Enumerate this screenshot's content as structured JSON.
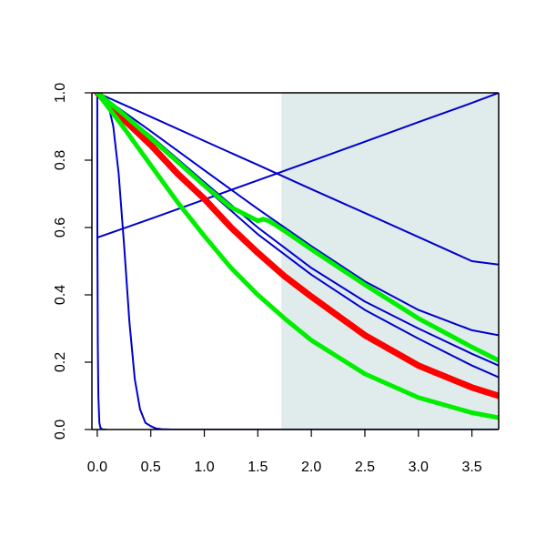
{
  "chart_data": {
    "type": "line",
    "title": "",
    "xlabel": "",
    "ylabel": "",
    "xlim": [
      -0.05,
      3.75
    ],
    "ylim": [
      0.0,
      1.0
    ],
    "grid": false,
    "legend": "none",
    "x_ticks": [
      "0.0",
      "0.5",
      "1.0",
      "1.5",
      "2.0",
      "2.5",
      "3.0",
      "3.5"
    ],
    "y_ticks": [
      "0.0",
      "0.2",
      "0.4",
      "0.6",
      "0.8",
      "1.0"
    ],
    "shaded_region": {
      "x_start": 1.72,
      "x_end": 3.75,
      "color": "#e0ecec"
    },
    "colors": {
      "blue": "#0000cc",
      "red": "#ff0000",
      "green": "#00ee00",
      "axis": "#000000"
    },
    "series": [
      {
        "color": "#0000cc",
        "width": 2,
        "x": [
          0,
          0.001,
          0.005,
          0.01,
          0.02,
          0.03,
          0.05,
          0.08
        ],
        "y": [
          1.0,
          0.6,
          0.25,
          0.1,
          0.02,
          0.005,
          0.0,
          0.0
        ]
      },
      {
        "color": "#0000cc",
        "width": 2,
        "x": [
          0,
          0.1,
          0.15,
          0.2,
          0.25,
          0.3,
          0.35,
          0.4,
          0.45,
          0.5,
          0.55,
          0.6,
          0.7,
          3.75
        ],
        "y": [
          1.0,
          0.97,
          0.9,
          0.76,
          0.55,
          0.32,
          0.15,
          0.06,
          0.02,
          0.01,
          0.003,
          0.001,
          0.0,
          0.0
        ]
      },
      {
        "color": "#0000cc",
        "width": 2,
        "x": [
          0,
          0.5,
          1.0,
          1.5,
          2.0,
          2.5,
          3.0,
          3.5,
          3.75
        ],
        "y": [
          0.57,
          0.626,
          0.683,
          0.74,
          0.797,
          0.855,
          0.913,
          0.97,
          1.0
        ]
      },
      {
        "color": "#0000cc",
        "width": 2,
        "x": [
          0,
          0.5,
          1.0,
          1.5,
          2.0,
          2.5,
          3.0,
          3.5,
          3.75
        ],
        "y": [
          1.0,
          0.929,
          0.857,
          0.786,
          0.714,
          0.643,
          0.572,
          0.5,
          0.49
        ]
      },
      {
        "color": "#0000cc",
        "width": 2,
        "x": [
          0,
          0.5,
          1.0,
          1.5,
          2.0,
          2.5,
          3.0,
          3.5,
          3.75
        ],
        "y": [
          1.0,
          0.886,
          0.77,
          0.655,
          0.545,
          0.44,
          0.355,
          0.295,
          0.28
        ]
      },
      {
        "color": "#0000cc",
        "width": 2,
        "x": [
          0,
          0.5,
          1.0,
          1.5,
          2.0,
          2.5,
          3.0,
          3.5,
          3.75
        ],
        "y": [
          1.0,
          0.872,
          0.735,
          0.6,
          0.48,
          0.38,
          0.3,
          0.225,
          0.19
        ]
      },
      {
        "color": "#0000cc",
        "width": 2,
        "x": [
          0,
          0.5,
          1.0,
          1.5,
          2.0,
          2.5,
          3.0,
          3.5,
          3.75
        ],
        "y": [
          1.0,
          0.862,
          0.72,
          0.58,
          0.46,
          0.355,
          0.27,
          0.19,
          0.155
        ]
      },
      {
        "color": "#ff0000",
        "width": 7,
        "x": [
          0,
          0.25,
          0.5,
          0.75,
          1.0,
          1.25,
          1.5,
          1.75,
          2.0,
          2.5,
          3.0,
          3.5,
          3.75
        ],
        "y": [
          1.0,
          0.92,
          0.845,
          0.76,
          0.685,
          0.6,
          0.525,
          0.455,
          0.395,
          0.28,
          0.19,
          0.125,
          0.1
        ]
      },
      {
        "color": "#00ee00",
        "width": 5,
        "x": [
          0,
          0.25,
          0.5,
          0.75,
          1.0,
          1.25,
          1.5,
          1.55,
          1.6,
          1.65,
          1.75,
          2.0,
          2.5,
          3.0,
          3.5,
          3.75
        ],
        "y": [
          1.0,
          0.935,
          0.865,
          0.795,
          0.725,
          0.66,
          0.62,
          0.625,
          0.62,
          0.61,
          0.59,
          0.535,
          0.43,
          0.33,
          0.245,
          0.205
        ]
      },
      {
        "color": "#00ee00",
        "width": 5,
        "x": [
          0,
          0.25,
          0.5,
          0.75,
          1.0,
          1.25,
          1.5,
          1.75,
          2.0,
          2.5,
          3.0,
          3.5,
          3.75
        ],
        "y": [
          1.0,
          0.895,
          0.785,
          0.675,
          0.575,
          0.48,
          0.4,
          0.33,
          0.265,
          0.165,
          0.095,
          0.05,
          0.035
        ]
      }
    ]
  }
}
